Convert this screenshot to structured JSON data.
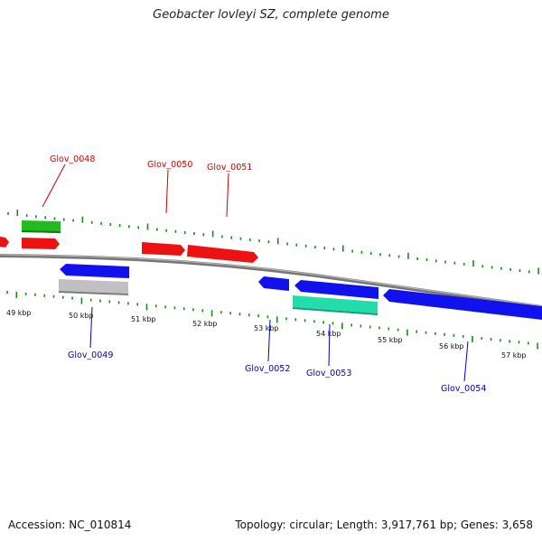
{
  "title": "Geobacter lovleyi SZ, complete genome",
  "footer": {
    "accession": "Accession: NC_010814",
    "summary": "Topology: circular; Length: 3,917,761 bp; Genes: 3,658"
  },
  "colors": {
    "backbone": "#888888",
    "tick": "#1a8a1a",
    "top_label": "#cc0000",
    "bottom_label": "#0000bb",
    "cds_forward": "#ee1111",
    "cds_reverse": "#1111ee",
    "rna": "#22bb22",
    "pseudo": "#c0c0c0",
    "other": "#22ddaa"
  },
  "scale_labels": [
    "49 kbp",
    "50 kbp",
    "51 kbp",
    "52 kbp",
    "53 kbp",
    "54 kbp",
    "55 kbp",
    "56 kbp",
    "57 kbp"
  ],
  "genes_top": [
    {
      "name": "Glov_0048"
    },
    {
      "name": "Glov_0050"
    },
    {
      "name": "Glov_0051"
    }
  ],
  "genes_bottom": [
    {
      "name": "Glov_0049"
    },
    {
      "name": "Glov_0052"
    },
    {
      "name": "Glov_0053"
    },
    {
      "name": "Glov_0054"
    }
  ]
}
